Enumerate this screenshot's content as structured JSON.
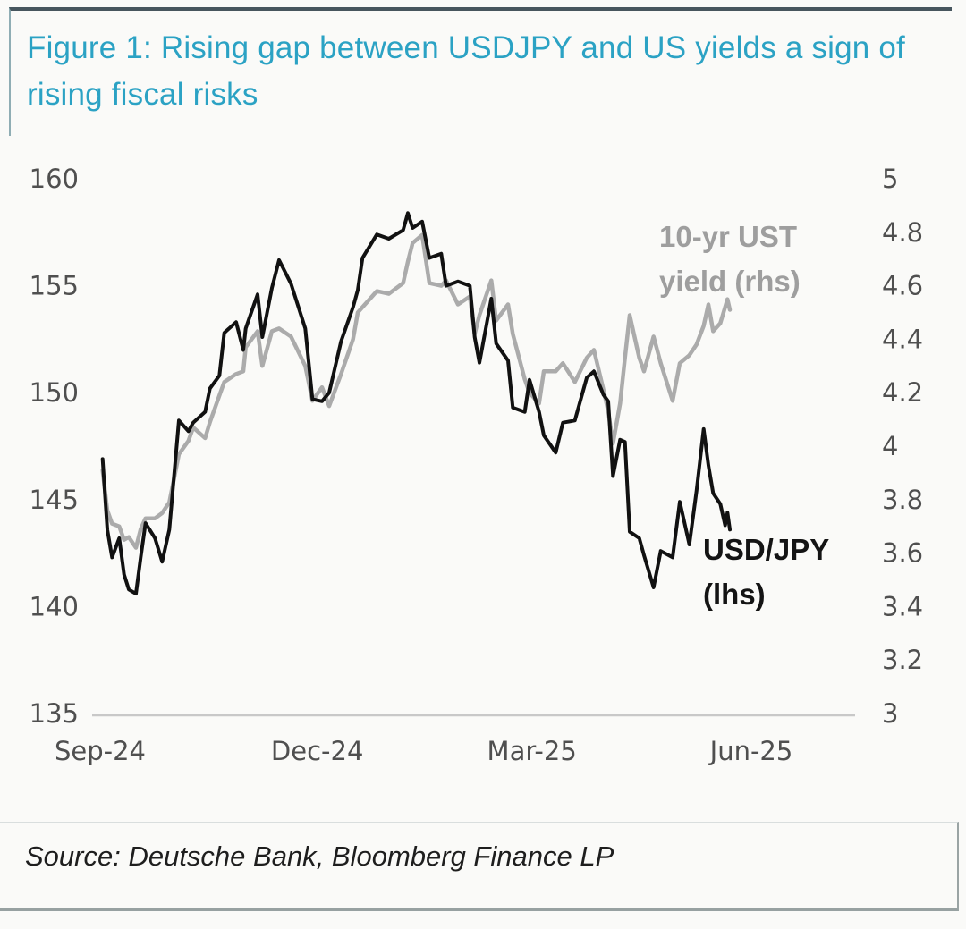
{
  "colors": {
    "title": "#2ba2c4",
    "usdjpy_line": "#111111",
    "yield_line": "#ababab",
    "legend_gray_text": "#9e9e9e",
    "legend_black_text": "#141414",
    "axis_text": "#4f4f4f",
    "axis_line": "#c8c8c8",
    "top_rule": "#47565e"
  },
  "source": {
    "text": "Source: Deutsche Bank, Bloomberg Finance LP"
  },
  "chart_data": {
    "type": "line",
    "title": "Figure 1: Rising gap between USDJPY and US yields a sign of rising fiscal risks",
    "legend_position": "inline-labels",
    "grid": false,
    "x": [
      "2024-09-02",
      "2024-09-04",
      "2024-09-06",
      "2024-09-09",
      "2024-09-11",
      "2024-09-13",
      "2024-09-16",
      "2024-09-18",
      "2024-09-20",
      "2024-09-24",
      "2024-09-27",
      "2024-09-30",
      "2024-10-04",
      "2024-10-08",
      "2024-10-10",
      "2024-10-15",
      "2024-10-17",
      "2024-10-21",
      "2024-10-23",
      "2024-10-28",
      "2024-10-31",
      "2024-11-01",
      "2024-11-06",
      "2024-11-08",
      "2024-11-12",
      "2024-11-15",
      "2024-11-20",
      "2024-11-26",
      "2024-11-29",
      "2024-12-03",
      "2024-12-06",
      "2024-12-11",
      "2024-12-16",
      "2024-12-18",
      "2024-12-20",
      "2024-12-26",
      "2024-12-31",
      "2025-01-06",
      "2025-01-08",
      "2025-01-10",
      "2025-01-14",
      "2025-01-17",
      "2025-01-22",
      "2025-01-24",
      "2025-01-29",
      "2025-02-03",
      "2025-02-05",
      "2025-02-07",
      "2025-02-12",
      "2025-02-14",
      "2025-02-19",
      "2025-02-21",
      "2025-02-26",
      "2025-02-28",
      "2025-03-04",
      "2025-03-06",
      "2025-03-11",
      "2025-03-14",
      "2025-03-19",
      "2025-03-24",
      "2025-03-27",
      "2025-03-31",
      "2025-04-02",
      "2025-04-04",
      "2025-04-07",
      "2025-04-09",
      "2025-04-11",
      "2025-04-15",
      "2025-04-17",
      "2025-04-21",
      "2025-04-24",
      "2025-04-29",
      "2025-05-02",
      "2025-05-06",
      "2025-05-09",
      "2025-05-12",
      "2025-05-14",
      "2025-05-16",
      "2025-05-19",
      "2025-05-21",
      "2025-05-22",
      "2025-05-23"
    ],
    "series": [
      {
        "id": "usdjpy",
        "label": "USD/JPY (lhs)",
        "axis": "left",
        "color": "#111111",
        "width": 4,
        "z": 2,
        "values": [
          146.9,
          143.6,
          142.3,
          143.2,
          141.5,
          140.8,
          140.6,
          142.3,
          143.9,
          143.2,
          142.1,
          143.6,
          148.7,
          148.2,
          148.6,
          149.1,
          150.2,
          150.8,
          152.8,
          153.3,
          152.0,
          153.0,
          154.6,
          152.6,
          154.9,
          156.2,
          155.1,
          153.0,
          149.7,
          149.6,
          150.0,
          152.4,
          154.0,
          154.8,
          156.3,
          157.4,
          157.2,
          157.6,
          158.4,
          157.7,
          158.0,
          156.3,
          156.5,
          155.0,
          155.2,
          155.0,
          152.6,
          151.4,
          154.4,
          152.3,
          151.5,
          149.3,
          149.1,
          150.6,
          149.1,
          148.0,
          147.2,
          148.6,
          148.7,
          150.7,
          151.0,
          149.9,
          149.6,
          146.1,
          147.8,
          147.7,
          143.5,
          143.2,
          142.4,
          140.9,
          142.6,
          142.3,
          144.9,
          142.9,
          145.4,
          148.3,
          146.6,
          145.3,
          144.8,
          143.8,
          144.4,
          143.6
        ]
      },
      {
        "id": "ust-yield",
        "label": "10-yr UST yield (rhs)",
        "axis": "right",
        "color": "#ababab",
        "width": 4.5,
        "z": 1,
        "values": [
          3.91,
          3.76,
          3.71,
          3.7,
          3.65,
          3.66,
          3.62,
          3.69,
          3.73,
          3.73,
          3.75,
          3.79,
          3.97,
          4.02,
          4.07,
          4.03,
          4.09,
          4.19,
          4.24,
          4.27,
          4.28,
          4.37,
          4.43,
          4.3,
          4.43,
          4.44,
          4.41,
          4.3,
          4.17,
          4.22,
          4.15,
          4.27,
          4.4,
          4.5,
          4.52,
          4.58,
          4.57,
          4.61,
          4.69,
          4.76,
          4.79,
          4.61,
          4.6,
          4.62,
          4.53,
          4.56,
          4.42,
          4.49,
          4.62,
          4.47,
          4.53,
          4.42,
          4.25,
          4.2,
          4.16,
          4.28,
          4.28,
          4.31,
          4.24,
          4.33,
          4.36,
          4.21,
          4.13,
          4.01,
          4.16,
          4.33,
          4.49,
          4.33,
          4.28,
          4.41,
          4.31,
          4.17,
          4.31,
          4.34,
          4.38,
          4.45,
          4.53,
          4.43,
          4.46,
          4.52,
          4.55,
          4.51
        ]
      }
    ],
    "left_axis": {
      "label": "",
      "range": [
        135,
        160
      ],
      "ticks": [
        "160",
        "155",
        "150",
        "145",
        "140",
        "135"
      ]
    },
    "right_axis": {
      "label": "",
      "range": [
        3,
        5
      ],
      "ticks": [
        "5",
        "4.8",
        "4.6",
        "4.4",
        "4.2",
        "4",
        "3.8",
        "3.6",
        "3.4",
        "3.2",
        "3"
      ]
    },
    "x_axis": {
      "tick_labels": [
        "Sep-24",
        "Dec-24",
        "Mar-25",
        "Jun-25"
      ],
      "tick_dates": [
        "2024-09-01",
        "2024-12-01",
        "2025-03-01",
        "2025-06-01"
      ]
    }
  }
}
